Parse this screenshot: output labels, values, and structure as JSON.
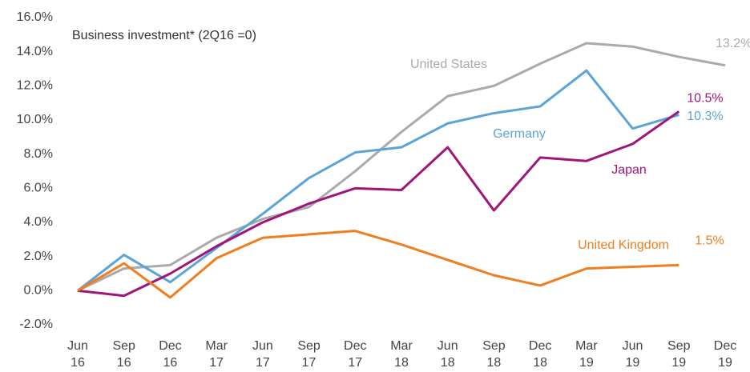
{
  "chart_data": {
    "type": "line",
    "title": "Business investment* (2Q16 =0)",
    "categories": [
      "Jun 16",
      "Sep 16",
      "Dec 16",
      "Mar 17",
      "Jun 17",
      "Sep 17",
      "Dec 17",
      "Mar 18",
      "Jun 18",
      "Sep 18",
      "Dec 18",
      "Mar 19",
      "Jun 19",
      "Sep 19",
      "Dec 19"
    ],
    "ylim": [
      -2,
      16
    ],
    "yticks": [
      {
        "value": -2,
        "label": "-2.0%"
      },
      {
        "value": 0,
        "label": "0.0%"
      },
      {
        "value": 2,
        "label": "2.0%"
      },
      {
        "value": 4,
        "label": "4.0%"
      },
      {
        "value": 6,
        "label": "6.0%"
      },
      {
        "value": 8,
        "label": "8.0%"
      },
      {
        "value": 10,
        "label": "10.0%"
      },
      {
        "value": 12,
        "label": "12.0%"
      },
      {
        "value": 14,
        "label": "14.0%"
      },
      {
        "value": 16,
        "label": "16.0%"
      }
    ],
    "grid": false,
    "series": [
      {
        "name": "United States",
        "color": "#aaaaaa",
        "values": [
          0,
          1.3,
          1.5,
          3.1,
          4.2,
          4.9,
          7.0,
          9.3,
          11.4,
          12.0,
          13.3,
          14.5,
          14.3,
          13.7,
          13.2
        ],
        "value_labels": [
          null,
          null,
          null,
          null,
          null,
          null,
          null,
          null,
          null,
          null,
          null,
          null,
          null,
          null,
          "13.2%"
        ]
      },
      {
        "name": "Germany",
        "color": "#5ba4d8",
        "values": [
          0,
          2.1,
          0.5,
          2.5,
          4.5,
          6.6,
          8.1,
          8.4,
          9.8,
          10.4,
          10.8,
          12.9,
          9.5,
          10.3,
          null
        ],
        "value_labels": [
          null,
          null,
          null,
          null,
          null,
          null,
          null,
          null,
          null,
          null,
          null,
          null,
          null,
          "10.3%",
          null
        ]
      },
      {
        "name": "Japan",
        "color": "#a0157a",
        "values": [
          0,
          -0.3,
          1.0,
          2.6,
          4.0,
          5.1,
          6.0,
          5.9,
          8.4,
          4.7,
          7.8,
          7.6,
          8.6,
          10.5,
          null
        ],
        "value_labels": [
          null,
          null,
          null,
          null,
          null,
          null,
          null,
          null,
          null,
          null,
          null,
          null,
          null,
          "10.5%",
          null
        ]
      },
      {
        "name": "United Kingdom",
        "color": "#f07d1e",
        "values": [
          0,
          1.6,
          -0.4,
          1.9,
          3.1,
          3.3,
          3.5,
          2.7,
          1.8,
          0.9,
          0.3,
          1.3,
          1.4,
          1.5,
          null
        ],
        "value_labels": [
          null,
          null,
          null,
          null,
          null,
          null,
          null,
          null,
          null,
          null,
          null,
          null,
          null,
          "1.5%",
          null
        ]
      }
    ]
  }
}
